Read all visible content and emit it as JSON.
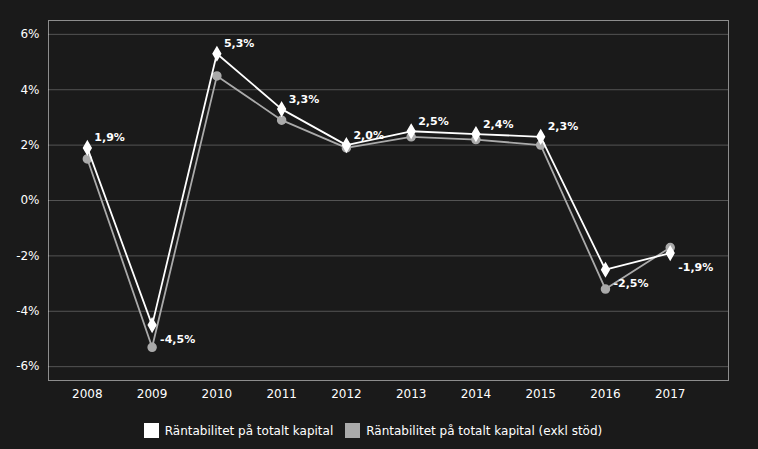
{
  "chart_data": {
    "type": "line",
    "x": [
      2008,
      2009,
      2010,
      2011,
      2012,
      2013,
      2014,
      2015,
      2016,
      2017
    ],
    "series": [
      {
        "name": "Räntabilitet på totalt kapital",
        "color": "#ffffff",
        "marker": "diamond",
        "values": [
          1.9,
          -4.5,
          5.3,
          3.3,
          2.0,
          2.5,
          2.4,
          2.3,
          -2.5,
          -1.9
        ]
      },
      {
        "name": "Räntabilitet på totalt kapital (exkl stöd)",
        "color": "#aaaaaa",
        "marker": "circle",
        "values": [
          1.5,
          -5.3,
          4.5,
          2.9,
          1.9,
          2.3,
          2.2,
          2.0,
          -3.2,
          -1.7
        ]
      }
    ],
    "annotations": [
      {
        "x": 2008,
        "y": 1.9,
        "label": "1,9%"
      },
      {
        "x": 2009,
        "y": -4.5,
        "label": "-4,5%"
      },
      {
        "x": 2010,
        "y": 5.3,
        "label": "5,3%"
      },
      {
        "x": 2011,
        "y": 3.3,
        "label": "3,3%"
      },
      {
        "x": 2012,
        "y": 2.0,
        "label": "2,0%"
      },
      {
        "x": 2013,
        "y": 2.5,
        "label": "2,5%"
      },
      {
        "x": 2014,
        "y": 2.4,
        "label": "2,4%"
      },
      {
        "x": 2015,
        "y": 2.3,
        "label": "2,3%"
      },
      {
        "x": 2016,
        "y": -2.5,
        "label": "-2,5%"
      },
      {
        "x": 2017,
        "y": -1.9,
        "label": "-1,9%"
      }
    ],
    "xlim": [
      2007.4,
      2017.9
    ],
    "xticks": [
      2008,
      2009,
      2010,
      2011,
      2012,
      2013,
      2014,
      2015,
      2016,
      2017
    ],
    "ylim": [
      -6.5,
      6.5
    ],
    "yticks": [
      {
        "value": -6,
        "label": "-6%"
      },
      {
        "value": -4,
        "label": "-4%"
      },
      {
        "value": -2,
        "label": "-2%"
      },
      {
        "value": 0,
        "label": "0%"
      },
      {
        "value": 2,
        "label": "2%"
      },
      {
        "value": 4,
        "label": "4%"
      },
      {
        "value": 6,
        "label": "6%"
      }
    ],
    "grid": true,
    "legend": "bottom"
  }
}
